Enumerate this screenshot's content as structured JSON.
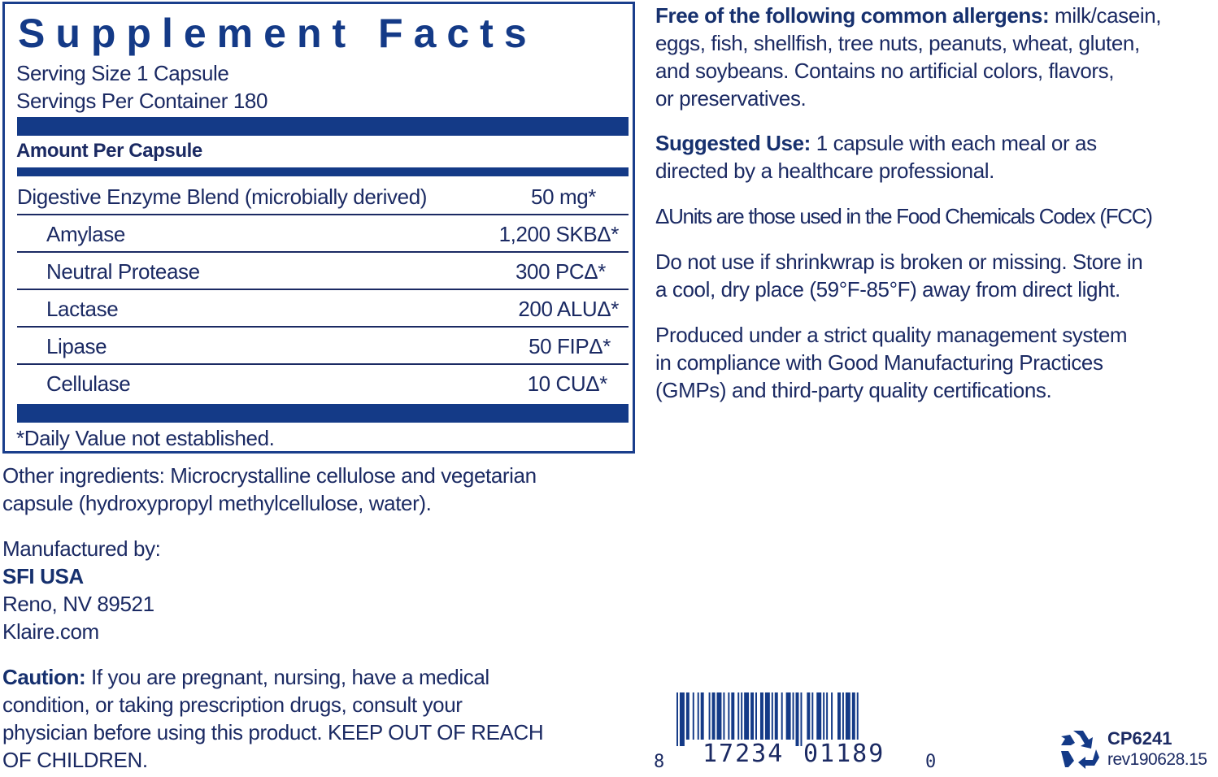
{
  "facts": {
    "title": "Supplement Facts",
    "serving_size": "Serving Size 1 Capsule",
    "servings_per_container": "Servings Per Container 180",
    "amount_header": "Amount Per Capsule",
    "rows": [
      {
        "name": "Digestive Enzyme Blend (microbially derived)",
        "amount": "50 mg*"
      },
      {
        "name": "Amylase",
        "amount": "1,200 SKBΔ*"
      },
      {
        "name": "Neutral Protease",
        "amount": "300 PCΔ*"
      },
      {
        "name": "Lactase",
        "amount": "200 ALUΔ*"
      },
      {
        "name": "Lipase",
        "amount": "50 FIPΔ*"
      },
      {
        "name": "Cellulase",
        "amount": "10 CUΔ*"
      }
    ],
    "footnote": "*Daily Value not established."
  },
  "left": {
    "other_ingredients": [
      "Other ingredients: Microcrystalline cellulose and vegetarian",
      "capsule (hydroxypropyl methylcellulose, water)."
    ],
    "manufactured_by": "Manufactured by:",
    "company": "SFI USA",
    "address": "Reno, NV 89521",
    "website": "Klaire.com",
    "caution_label": "Caution:",
    "caution": [
      " If you are pregnant, nursing, have a medical",
      "condition, or taking prescription drugs, consult your",
      "physician before using this product. KEEP OUT OF REACH",
      "OF CHILDREN."
    ]
  },
  "right": {
    "allergens_label": "Free of the following common allergens:",
    "allergens": [
      " milk/casein,",
      "eggs, fish, shellfish, tree nuts, peanuts, wheat, gluten,",
      "and soybeans. Contains no artificial colors, flavors,",
      "or preservatives."
    ],
    "use_label": "Suggested Use:",
    "use": [
      " 1 capsule with each meal or as",
      "directed by a healthcare professional."
    ],
    "units_note": "ΔUnits are those used in the Food Chemicals Codex (FCC)",
    "storage": [
      "Do not use if shrinkwrap is broken or missing. Store in",
      "a cool, dry place (59°F-85°F) away from direct light."
    ],
    "quality": [
      "Produced under a strict quality management system",
      "in compliance with Good Manufacturing Practices",
      "(GMPs) and third-party quality certifications."
    ]
  },
  "barcode": {
    "first": "8",
    "left_group": "17234",
    "right_group": "01189",
    "last": "0"
  },
  "product_code": "CP6241",
  "revision": "rev190628.15",
  "icons": {
    "recycle": "recycle-icon"
  },
  "colors": {
    "brand_navy": "#143a87",
    "text": "#1b2a63"
  }
}
